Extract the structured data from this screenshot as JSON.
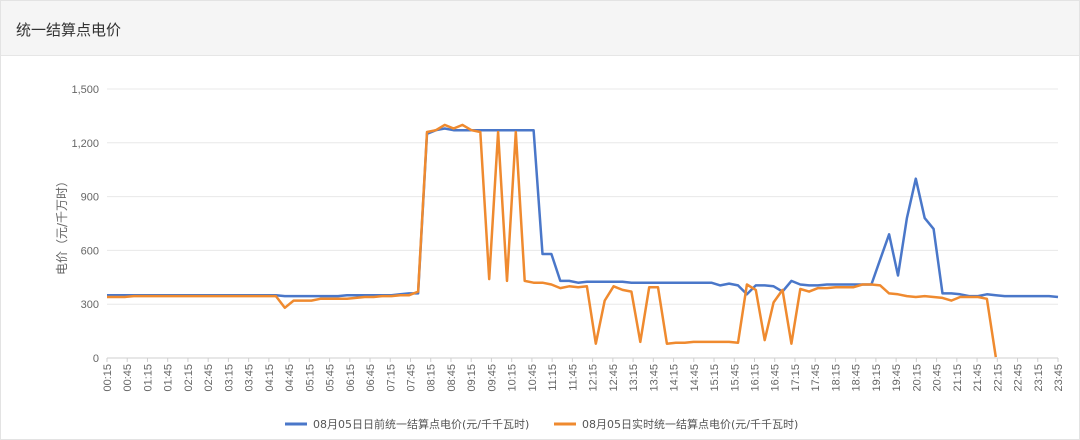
{
  "panel": {
    "title": "统一结算点电价"
  },
  "chart_data": {
    "type": "line",
    "ylabel": "电价（元/千万时）",
    "ylim": [
      0,
      1500
    ],
    "yticks": [
      "0",
      "300",
      "600",
      "900",
      "1,200",
      "1,500"
    ],
    "ytick_values": [
      0,
      300,
      600,
      900,
      1200,
      1500
    ],
    "grid": true,
    "legend_position": "bottom",
    "x_tick_labels": [
      "00:15",
      "00:45",
      "01:15",
      "01:45",
      "02:15",
      "02:45",
      "03:15",
      "03:45",
      "04:15",
      "04:45",
      "05:15",
      "05:45",
      "06:15",
      "06:45",
      "07:15",
      "07:45",
      "08:15",
      "08:45",
      "09:15",
      "09:45",
      "10:15",
      "10:45",
      "11:15",
      "11:45",
      "12:15",
      "12:45",
      "13:15",
      "13:45",
      "14:15",
      "14:45",
      "15:15",
      "15:45",
      "16:15",
      "16:45",
      "17:15",
      "17:45",
      "18:15",
      "18:45",
      "19:15",
      "19:45",
      "20:15",
      "20:45",
      "21:15",
      "21:45",
      "22:15",
      "22:45",
      "23:15",
      "23:45"
    ],
    "series": [
      {
        "name": "08月05日日前统一结算点电价(元/千千瓦时)",
        "color": "#4a77c9",
        "values": [
          350,
          350,
          350,
          350,
          350,
          350,
          350,
          350,
          350,
          350,
          350,
          350,
          350,
          350,
          350,
          350,
          350,
          350,
          350,
          350,
          345,
          345,
          345,
          345,
          345,
          345,
          345,
          350,
          350,
          350,
          350,
          350,
          350,
          355,
          360,
          360,
          1250,
          1270,
          1280,
          1270,
          1270,
          1270,
          1270,
          1270,
          1270,
          1270,
          1270,
          1270,
          1270,
          580,
          580,
          430,
          430,
          420,
          425,
          425,
          425,
          425,
          425,
          420,
          420,
          420,
          420,
          420,
          420,
          420,
          420,
          420,
          420,
          405,
          415,
          405,
          355,
          405,
          405,
          400,
          370,
          430,
          410,
          405,
          405,
          410,
          410,
          410,
          410,
          410,
          410,
          550,
          690,
          460,
          780,
          1000,
          780,
          720,
          360,
          360,
          355,
          345,
          345,
          355,
          350,
          345,
          345,
          345,
          345,
          345,
          345,
          340
        ]
      },
      {
        "name": "08月05日实时统一结算点电价(元/千千瓦时)",
        "color": "#ef8a2f",
        "values": [
          340,
          340,
          340,
          345,
          345,
          345,
          345,
          345,
          345,
          345,
          345,
          345,
          345,
          345,
          345,
          345,
          345,
          345,
          345,
          345,
          280,
          320,
          320,
          320,
          330,
          330,
          330,
          330,
          335,
          340,
          340,
          345,
          345,
          350,
          350,
          370,
          1260,
          1270,
          1300,
          1280,
          1300,
          1270,
          1260,
          440,
          1260,
          430,
          1260,
          430,
          420,
          420,
          410,
          390,
          400,
          395,
          400,
          80,
          320,
          400,
          380,
          370,
          90,
          395,
          395,
          80,
          85,
          85,
          90,
          90,
          90,
          90,
          90,
          85,
          410,
          380,
          100,
          310,
          380,
          80,
          385,
          370,
          390,
          390,
          395,
          395,
          395,
          410,
          410,
          405,
          360,
          355,
          345,
          340,
          345,
          340,
          335,
          320,
          340,
          340,
          340,
          330,
          5
        ]
      }
    ]
  }
}
